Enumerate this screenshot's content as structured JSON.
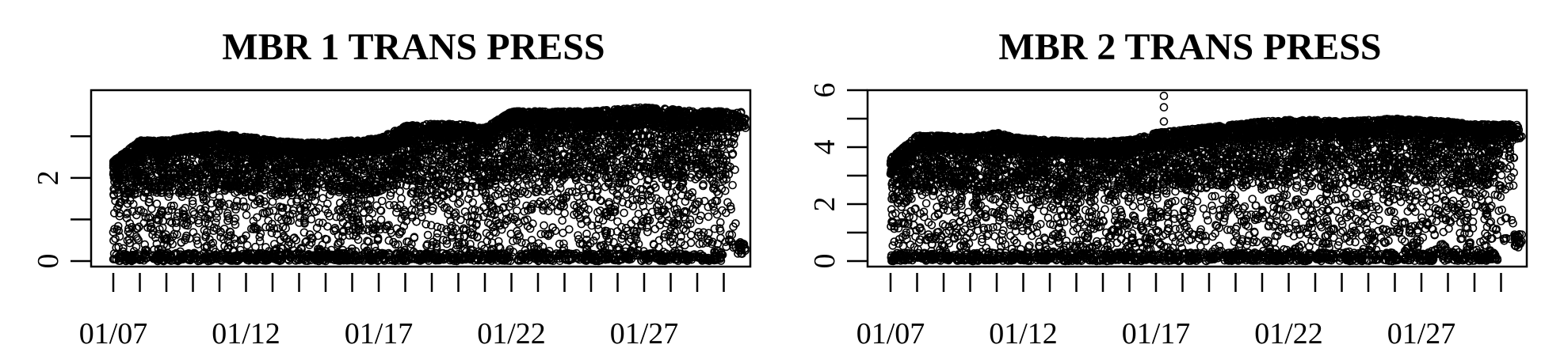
{
  "chart_data": [
    {
      "type": "scatter",
      "title": "MBR 1 TRANS PRESS",
      "xlabel": "",
      "ylabel": "",
      "x_type": "date",
      "x_range": [
        "01/06",
        "01/31"
      ],
      "x_tick_labels": [
        "01/07",
        "01/12",
        "01/17",
        "01/22",
        "01/27"
      ],
      "y_ticks": [
        0,
        1,
        2,
        3
      ],
      "y_tick_labels": [
        "0",
        "2"
      ],
      "ylim": [
        0,
        3.9
      ],
      "grid": false,
      "point_style": "open-circle",
      "series": [
        {
          "x": [
            "01/07",
            "01/08",
            "01/09",
            "01/10",
            "01/11",
            "01/12",
            "01/13",
            "01/14",
            "01/15",
            "01/16",
            "01/17",
            "01/18",
            "01/19",
            "01/20",
            "01/21",
            "01/22",
            "01/23",
            "01/24",
            "01/25",
            "01/26",
            "01/27",
            "01/28",
            "01/29",
            "01/30"
          ],
          "y_upper": [
            2.4,
            2.9,
            2.9,
            3.0,
            3.05,
            3.0,
            2.9,
            2.85,
            2.85,
            2.9,
            2.95,
            3.25,
            3.3,
            3.3,
            3.2,
            3.6,
            3.6,
            3.6,
            3.6,
            3.65,
            3.7,
            3.65,
            3.6,
            3.6
          ],
          "y_lower": [
            0,
            0,
            0,
            0,
            0,
            0,
            0,
            0,
            0,
            0,
            0,
            0,
            0,
            0,
            0,
            0,
            0,
            0,
            0,
            0,
            0,
            0,
            0,
            0.3
          ]
        }
      ]
    },
    {
      "type": "scatter",
      "title": "MBR 2 TRANS PRESS",
      "xlabel": "",
      "ylabel": "",
      "x_type": "date",
      "x_range": [
        "01/06",
        "01/31"
      ],
      "x_tick_labels": [
        "01/07",
        "01/12",
        "01/17",
        "01/22",
        "01/27"
      ],
      "y_ticks": [
        0,
        1,
        2,
        3,
        4,
        5,
        6
      ],
      "y_tick_labels": [
        "0",
        "2",
        "4",
        "6"
      ],
      "ylim": [
        0,
        6
      ],
      "grid": false,
      "point_style": "open-circle",
      "series": [
        {
          "x": [
            "01/07",
            "01/08",
            "01/09",
            "01/10",
            "01/11",
            "01/12",
            "01/13",
            "01/14",
            "01/15",
            "01/16",
            "01/17",
            "01/18",
            "01/19",
            "01/20",
            "01/21",
            "01/22",
            "01/23",
            "01/24",
            "01/25",
            "01/26",
            "01/27",
            "01/28",
            "01/29",
            "01/30"
          ],
          "y_upper": [
            3.6,
            4.4,
            4.4,
            4.35,
            4.5,
            4.3,
            4.25,
            4.2,
            4.2,
            4.25,
            4.5,
            4.6,
            4.7,
            4.8,
            4.9,
            4.95,
            4.95,
            4.9,
            4.95,
            5.0,
            4.95,
            4.9,
            4.8,
            4.8
          ],
          "y_lower": [
            0,
            0,
            0,
            0,
            0,
            0,
            0,
            0,
            0,
            0,
            0,
            0,
            0,
            0,
            0,
            0,
            0,
            0,
            0,
            0,
            0,
            0,
            0,
            0.7
          ]
        }
      ],
      "outliers": [
        {
          "x": "01/17",
          "y": 5.8
        },
        {
          "x": "01/17",
          "y": 5.4
        },
        {
          "x": "01/17",
          "y": 4.9
        }
      ]
    }
  ]
}
